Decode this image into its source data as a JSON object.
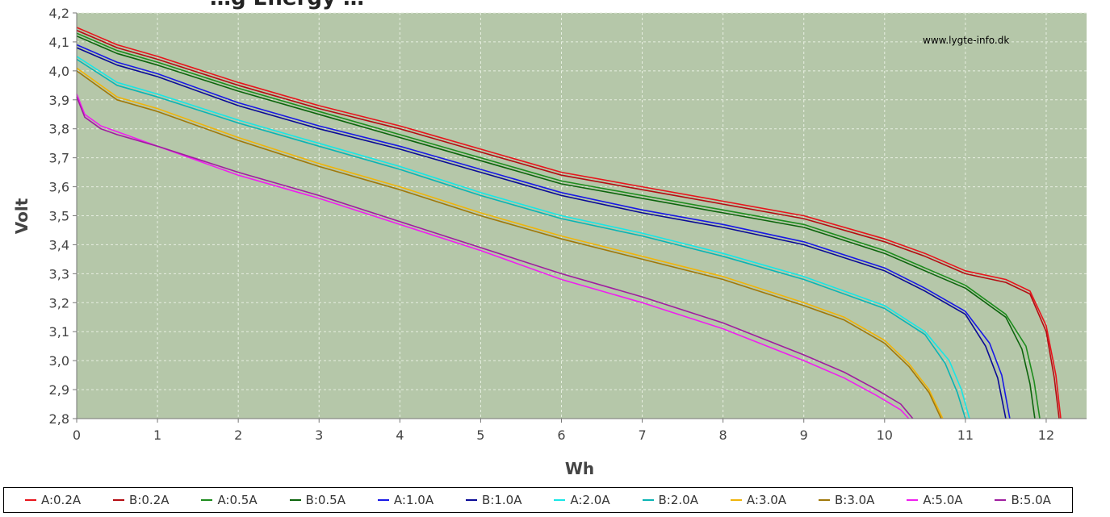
{
  "chart_data": {
    "type": "line",
    "title": "…g Energy …",
    "xlabel": "Wh",
    "ylabel": "Volt",
    "xlim": [
      0,
      12.5
    ],
    "ylim": [
      2.8,
      4.2
    ],
    "x_ticks": [
      "0",
      "1",
      "2",
      "3",
      "4",
      "5",
      "6",
      "7",
      "8",
      "9",
      "10",
      "11",
      "12"
    ],
    "y_ticks": [
      "2,8",
      "2,9",
      "3,0",
      "3,1",
      "3,2",
      "3,3",
      "3,4",
      "3,5",
      "3,6",
      "3,7",
      "3,8",
      "3,9",
      "4,0",
      "4,1",
      "4,2"
    ],
    "grid": true,
    "legend_position": "bottom",
    "annotation": "www.lygte-info.dk",
    "plot_background": "#b5c7a9",
    "series": [
      {
        "name": "A:0.2A",
        "color": "#e8141c",
        "x": [
          0,
          0.5,
          1,
          2,
          3,
          4,
          5,
          6,
          7,
          8,
          9,
          10,
          10.5,
          11,
          11.5,
          11.8,
          12,
          12.12,
          12.18
        ],
        "y": [
          4.15,
          4.09,
          4.05,
          3.96,
          3.88,
          3.81,
          3.73,
          3.65,
          3.6,
          3.55,
          3.5,
          3.42,
          3.37,
          3.31,
          3.28,
          3.24,
          3.12,
          2.95,
          2.8
        ]
      },
      {
        "name": "B:0.2A",
        "color": "#b40c12",
        "x": [
          0,
          0.5,
          1,
          2,
          3,
          4,
          5,
          6,
          7,
          8,
          9,
          10,
          10.5,
          11,
          11.5,
          11.8,
          12,
          12.1,
          12.16
        ],
        "y": [
          4.14,
          4.08,
          4.04,
          3.95,
          3.87,
          3.8,
          3.72,
          3.64,
          3.59,
          3.54,
          3.49,
          3.41,
          3.36,
          3.3,
          3.27,
          3.23,
          3.1,
          2.94,
          2.8
        ]
      },
      {
        "name": "A:0.5A",
        "color": "#1e8c1e",
        "x": [
          0,
          0.5,
          1,
          2,
          3,
          4,
          5,
          6,
          7,
          8,
          9,
          10,
          10.5,
          11,
          11.5,
          11.75,
          11.85,
          11.92
        ],
        "y": [
          4.13,
          4.07,
          4.03,
          3.94,
          3.86,
          3.78,
          3.7,
          3.62,
          3.57,
          3.52,
          3.47,
          3.38,
          3.32,
          3.26,
          3.16,
          3.05,
          2.93,
          2.8
        ]
      },
      {
        "name": "B:0.5A",
        "color": "#0c640c",
        "x": [
          0,
          0.5,
          1,
          2,
          3,
          4,
          5,
          6,
          7,
          8,
          9,
          10,
          10.5,
          11,
          11.5,
          11.7,
          11.8,
          11.86
        ],
        "y": [
          4.12,
          4.06,
          4.02,
          3.93,
          3.85,
          3.77,
          3.69,
          3.61,
          3.56,
          3.51,
          3.46,
          3.37,
          3.31,
          3.25,
          3.15,
          3.04,
          2.92,
          2.8
        ]
      },
      {
        "name": "A:1.0A",
        "color": "#1818e6",
        "x": [
          0,
          0.5,
          1,
          2,
          3,
          4,
          5,
          6,
          7,
          8,
          9,
          10,
          10.5,
          11,
          11.3,
          11.45,
          11.55
        ],
        "y": [
          4.09,
          4.03,
          3.99,
          3.89,
          3.81,
          3.74,
          3.66,
          3.58,
          3.52,
          3.47,
          3.41,
          3.32,
          3.25,
          3.17,
          3.06,
          2.95,
          2.8
        ]
      },
      {
        "name": "B:1.0A",
        "color": "#0a0a96",
        "x": [
          0,
          0.5,
          1,
          2,
          3,
          4,
          5,
          6,
          7,
          8,
          9,
          10,
          10.5,
          11,
          11.25,
          11.4,
          11.5
        ],
        "y": [
          4.08,
          4.02,
          3.98,
          3.88,
          3.8,
          3.73,
          3.65,
          3.57,
          3.51,
          3.46,
          3.4,
          3.31,
          3.24,
          3.16,
          3.05,
          2.94,
          2.8
        ]
      },
      {
        "name": "A:2.0A",
        "color": "#18e6e6",
        "x": [
          0,
          0.5,
          1,
          2,
          3,
          4,
          5,
          6,
          7,
          8,
          9,
          10,
          10.5,
          10.8,
          10.95,
          11.05
        ],
        "y": [
          4.05,
          3.96,
          3.92,
          3.83,
          3.75,
          3.67,
          3.58,
          3.5,
          3.44,
          3.37,
          3.29,
          3.19,
          3.1,
          3.0,
          2.9,
          2.8
        ]
      },
      {
        "name": "B:2.0A",
        "color": "#0ab4b4",
        "x": [
          0,
          0.5,
          1,
          2,
          3,
          4,
          5,
          6,
          7,
          8,
          9,
          10,
          10.5,
          10.75,
          10.9,
          11.0
        ],
        "y": [
          4.04,
          3.95,
          3.91,
          3.82,
          3.74,
          3.66,
          3.57,
          3.49,
          3.43,
          3.36,
          3.28,
          3.18,
          3.09,
          2.99,
          2.89,
          2.8
        ]
      },
      {
        "name": "A:3.0A",
        "color": "#f0b40a",
        "x": [
          0,
          0.5,
          1,
          2,
          3,
          4,
          5,
          6,
          7,
          8,
          9,
          9.5,
          10,
          10.3,
          10.55,
          10.72
        ],
        "y": [
          4.01,
          3.91,
          3.87,
          3.77,
          3.68,
          3.6,
          3.51,
          3.43,
          3.36,
          3.29,
          3.2,
          3.15,
          3.07,
          2.99,
          2.9,
          2.8
        ]
      },
      {
        "name": "B:3.0A",
        "color": "#a0780a",
        "x": [
          0,
          0.5,
          1,
          2,
          3,
          4,
          5,
          6,
          7,
          8,
          9,
          9.5,
          10,
          10.3,
          10.55,
          10.7
        ],
        "y": [
          4.0,
          3.9,
          3.86,
          3.76,
          3.67,
          3.59,
          3.5,
          3.42,
          3.35,
          3.28,
          3.19,
          3.14,
          3.06,
          2.98,
          2.89,
          2.8
        ]
      },
      {
        "name": "A:5.0A",
        "color": "#f01ef0",
        "x": [
          0,
          0.1,
          0.3,
          0.5,
          1,
          2,
          3,
          4,
          5,
          6,
          7,
          8,
          9,
          9.5,
          9.9,
          10.2,
          10.3
        ],
        "y": [
          3.92,
          3.85,
          3.81,
          3.79,
          3.74,
          3.64,
          3.56,
          3.47,
          3.38,
          3.28,
          3.2,
          3.11,
          3.0,
          2.94,
          2.88,
          2.83,
          2.8
        ]
      },
      {
        "name": "B:5.0A",
        "color": "#a01ea0",
        "x": [
          0,
          0.1,
          0.3,
          0.5,
          1,
          2,
          3,
          4,
          5,
          6,
          7,
          8,
          9,
          9.5,
          9.9,
          10.2,
          10.35
        ],
        "y": [
          3.91,
          3.84,
          3.8,
          3.78,
          3.74,
          3.65,
          3.57,
          3.48,
          3.39,
          3.3,
          3.22,
          3.13,
          3.02,
          2.96,
          2.9,
          2.85,
          2.8
        ]
      }
    ]
  }
}
